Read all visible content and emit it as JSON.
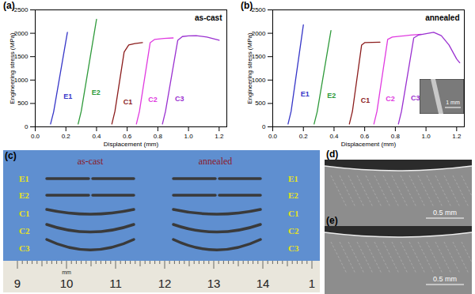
{
  "chart_data": [
    {
      "type": "line",
      "panel": "(a)",
      "title": "as-cast",
      "xlabel": "Displacement (mm)",
      "ylabel": "Engineering stress (MPa)",
      "xlim": [
        0,
        1.25
      ],
      "xticks": [
        {
          "value": 0,
          "label": "0.0"
        },
        0.2,
        0.4,
        0.6,
        0.8,
        {
          "value": 1,
          "label": "1.0"
        },
        1.2
      ],
      "ylim": [
        0,
        2500
      ],
      "yticks": [
        0,
        500,
        1000,
        1500,
        2000,
        2500
      ],
      "series": [
        {
          "name": "E1",
          "color": "#3636c8",
          "x": [
            0.1,
            0.12,
            0.21
          ],
          "values": [
            60,
            320,
            2020
          ]
        },
        {
          "name": "E2",
          "color": "#2e9a3a",
          "x": [
            0.28,
            0.3,
            0.4
          ],
          "values": [
            60,
            330,
            2300
          ]
        },
        {
          "name": "C1",
          "color": "#8b1c1c",
          "x": [
            0.5,
            0.52,
            0.58,
            0.61,
            0.65,
            0.7
          ],
          "values": [
            60,
            330,
            1600,
            1750,
            1780,
            1800
          ]
        },
        {
          "name": "C2",
          "color": "#e03ae0",
          "x": [
            0.66,
            0.68,
            0.75,
            0.78,
            0.84,
            0.9
          ],
          "values": [
            60,
            330,
            1800,
            1870,
            1890,
            1900
          ]
        },
        {
          "name": "C3",
          "color": "#9a30d0",
          "x": [
            0.83,
            0.85,
            0.93,
            0.96,
            1.0,
            1.05,
            1.12,
            1.2
          ],
          "values": [
            60,
            330,
            1850,
            1930,
            1945,
            1950,
            1920,
            1850
          ]
        }
      ]
    },
    {
      "type": "line",
      "panel": "(b)",
      "title": "annealed",
      "xlabel": "Displacement (mm)",
      "ylabel": "Engineering stress (MPa)",
      "xlim": [
        0,
        1.25
      ],
      "xticks": [
        {
          "value": 0,
          "label": "0.0"
        },
        0.2,
        0.4,
        0.6,
        0.8,
        {
          "value": 1,
          "label": "1.0"
        },
        1.2
      ],
      "ylim": [
        0,
        2500
      ],
      "yticks": [
        0,
        500,
        1000,
        1500,
        2000,
        2500
      ],
      "inset_label": "1 mm",
      "series": [
        {
          "name": "E1",
          "color": "#3636c8",
          "x": [
            0.1,
            0.12,
            0.2
          ],
          "values": [
            60,
            330,
            2180
          ]
        },
        {
          "name": "E2",
          "color": "#2e9a3a",
          "x": [
            0.27,
            0.29,
            0.38
          ],
          "values": [
            60,
            320,
            2060
          ]
        },
        {
          "name": "C1",
          "color": "#8b1c1c",
          "x": [
            0.5,
            0.52,
            0.58,
            0.6,
            0.65,
            0.7
          ],
          "values": [
            60,
            330,
            1750,
            1800,
            1805,
            1810
          ]
        },
        {
          "name": "C2",
          "color": "#e03ae0",
          "x": [
            0.66,
            0.68,
            0.75,
            0.78,
            0.84,
            0.9,
            0.97
          ],
          "values": [
            60,
            330,
            1870,
            1920,
            1940,
            1960,
            1980
          ]
        },
        {
          "name": "C3",
          "color": "#9a30d0",
          "x": [
            0.82,
            0.84,
            0.92,
            0.95,
            1.0,
            1.05,
            1.1,
            1.15,
            1.2,
            1.22
          ],
          "values": [
            60,
            330,
            1900,
            1960,
            1990,
            2020,
            1950,
            1750,
            1450,
            1370
          ]
        }
      ]
    }
  ],
  "photos": {
    "c": {
      "panel": "(c)",
      "groups": [
        "as-cast",
        "annealed"
      ],
      "labels_left": [
        "E1",
        "E2",
        "C1",
        "C2",
        "C3"
      ],
      "labels_right": [
        "E1",
        "E2",
        "C1",
        "C2",
        "C3"
      ],
      "ruler_unit": "mm",
      "ruler_numbers": [
        "9",
        "10",
        "11",
        "12",
        "13",
        "14",
        "1"
      ]
    },
    "d": {
      "panel": "(d)",
      "scale_bar": "0.5 mm"
    },
    "e": {
      "panel": "(e)",
      "scale_bar": "0.5 mm"
    }
  }
}
